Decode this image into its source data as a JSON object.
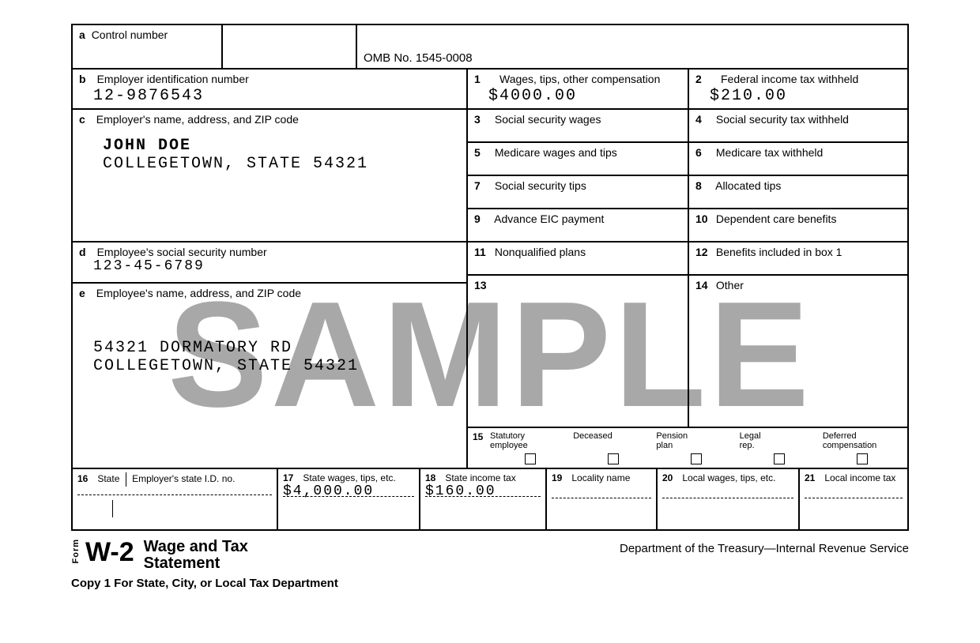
{
  "watermark": "SAMPLE",
  "form": {
    "omb": "OMB No. 1545-0008",
    "a": {
      "letter": "a",
      "label": "Control number",
      "value": ""
    },
    "b": {
      "letter": "b",
      "label": "Employer identification number",
      "value": "12-9876543"
    },
    "c": {
      "letter": "c",
      "label": "Employer's name, address, and ZIP code",
      "name": "JOHN DOE",
      "addr": "COLLEGETOWN, STATE  54321"
    },
    "d": {
      "letter": "d",
      "label": "Employee's social security number",
      "value": "123-45-6789"
    },
    "e": {
      "letter": "e",
      "label": "Employee's name, address, and ZIP code",
      "line1": "54321 DORMATORY RD",
      "line2": "COLLEGETOWN, STATE  54321"
    },
    "boxes": {
      "1": {
        "num": "1",
        "label": "Wages, tips, other compensation",
        "value": "$4000.00"
      },
      "2": {
        "num": "2",
        "label": "Federal income tax withheld",
        "value": "$210.00"
      },
      "3": {
        "num": "3",
        "label": "Social security wages"
      },
      "4": {
        "num": "4",
        "label": "Social security tax withheld"
      },
      "5": {
        "num": "5",
        "label": "Medicare wages and tips"
      },
      "6": {
        "num": "6",
        "label": "Medicare tax withheld"
      },
      "7": {
        "num": "7",
        "label": "Social security tips"
      },
      "8": {
        "num": "8",
        "label": "Allocated tips"
      },
      "9": {
        "num": "9",
        "label": "Advance EIC payment"
      },
      "10": {
        "num": "10",
        "label": "Dependent care benefits"
      },
      "11": {
        "num": "11",
        "label": "Nonqualified plans"
      },
      "12": {
        "num": "12",
        "label": "Benefits included in box 1"
      },
      "13": {
        "num": "13",
        "label": ""
      },
      "14": {
        "num": "14",
        "label": "Other"
      }
    },
    "box15": {
      "num": "15",
      "items": [
        {
          "label": "Statutory\nemployee"
        },
        {
          "label": "Deceased"
        },
        {
          "label": "Pension\nplan"
        },
        {
          "label": "Legal\nrep."
        },
        {
          "label": "Deferred\ncompensation"
        }
      ]
    },
    "box16": {
      "num": "16",
      "label_state": "State",
      "label_id": "Employer's state I.D. no."
    },
    "box17": {
      "num": "17",
      "label": "State wages, tips, etc.",
      "value": "$4,000.00"
    },
    "box18": {
      "num": "18",
      "label": "State income tax",
      "value": "$160.00"
    },
    "box19": {
      "num": "19",
      "label": "Locality name"
    },
    "box20": {
      "num": "20",
      "label": "Local wages, tips, etc."
    },
    "box21": {
      "num": "21",
      "label": "Local income tax"
    }
  },
  "footer": {
    "form_word": "Form",
    "code": "W-2",
    "name_line1": "Wage and Tax",
    "name_line2": "Statement",
    "copy": "Copy 1 For State, City, or Local Tax Department",
    "dept": "Department of the Treasury—Internal Revenue Service"
  },
  "style": {
    "border_color": "#000000",
    "watermark_color": "#9a9a9a",
    "mono_font": "Courier New",
    "sans_font": "Arial"
  }
}
